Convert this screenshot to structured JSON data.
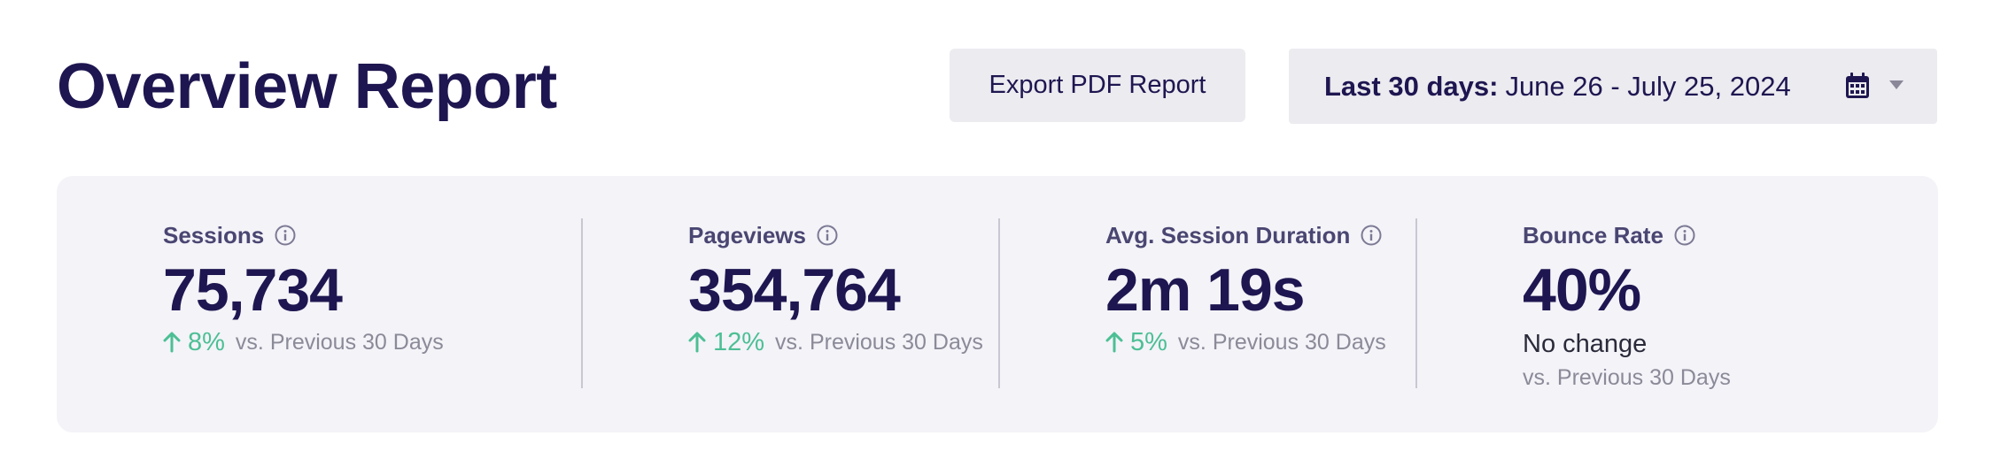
{
  "header": {
    "title": "Overview Report",
    "export_label": "Export PDF Report",
    "date_range": {
      "label": "Last 30 days:",
      "value": "June 26 - July 25, 2024"
    }
  },
  "metrics": [
    {
      "label": "Sessions",
      "value": "75,734",
      "change_pct": "8%",
      "change_direction": "up",
      "comparison": "vs. Previous 30 Days"
    },
    {
      "label": "Pageviews",
      "value": "354,764",
      "change_pct": "12%",
      "change_direction": "up",
      "comparison": "vs. Previous 30 Days"
    },
    {
      "label": "Avg. Session Duration",
      "value": "2m 19s",
      "change_pct": "5%",
      "change_direction": "up",
      "comparison": "vs. Previous 30 Days"
    },
    {
      "label": "Bounce Rate",
      "value": "40%",
      "status": "No change",
      "comparison": "vs. Previous 30 Days"
    }
  ],
  "colors": {
    "title": "#1e1650",
    "positive": "#4cbf94",
    "muted": "#8b8a98",
    "card_bg": "#f3f3f8",
    "button_bg": "#ebebf0"
  }
}
